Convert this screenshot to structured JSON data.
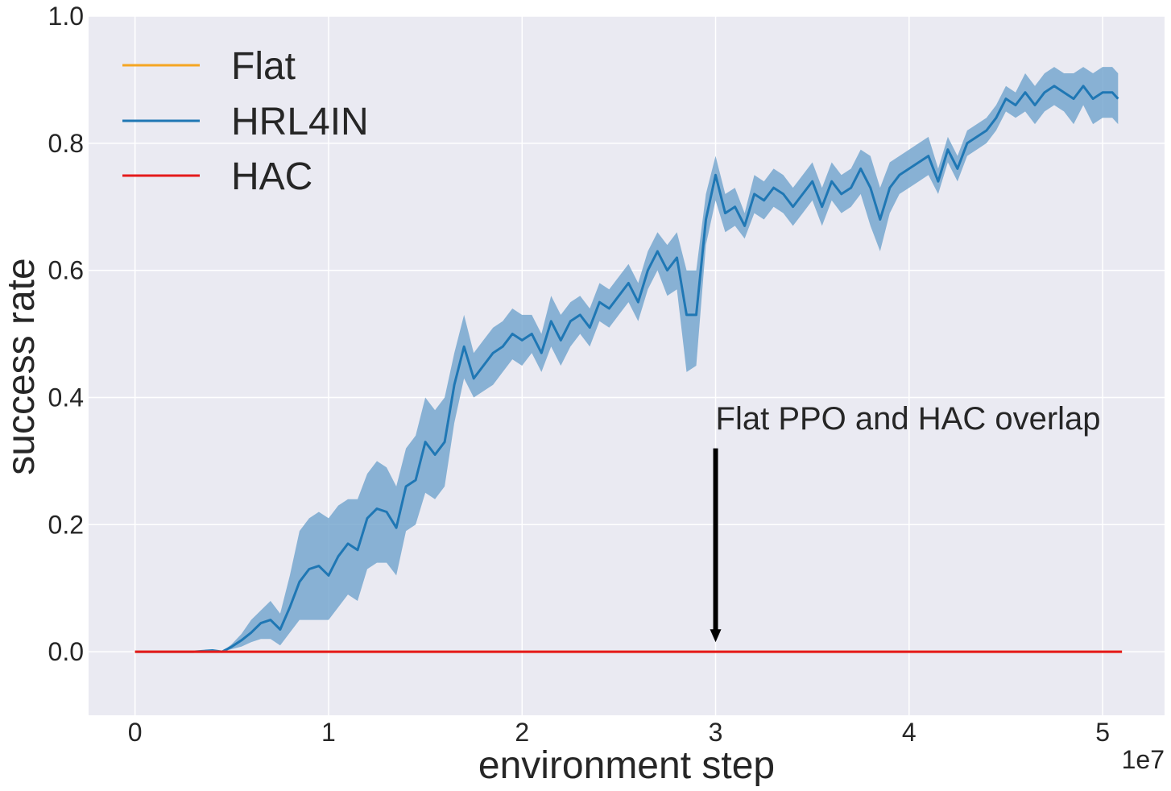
{
  "chart_data": {
    "type": "line",
    "title": "",
    "xlabel": "environment step",
    "ylabel": "success rate",
    "x_offset_label": "1e7",
    "xlim": [
      -0.24,
      5.32
    ],
    "ylim": [
      -0.1,
      1.0
    ],
    "x_ticks": [
      0,
      1,
      2,
      3,
      4,
      5
    ],
    "x_tick_labels": [
      "0",
      "1",
      "2",
      "3",
      "4",
      "5"
    ],
    "y_ticks": [
      0.0,
      0.2,
      0.4,
      0.6,
      0.8,
      1.0
    ],
    "y_tick_labels": [
      "0.0",
      "0.2",
      "0.4",
      "0.6",
      "0.8",
      "1.0"
    ],
    "grid": true,
    "legend_position": "top-left",
    "background_color": "#eaeaf2",
    "series": [
      {
        "name": "Flat",
        "color": "#f5a623",
        "x": [
          0.0,
          5.1
        ],
        "y": [
          0.0,
          0.0
        ]
      },
      {
        "name": "HRL4IN",
        "color": "#1f77b4",
        "band_color": "#6fa3cc",
        "x": [
          0.0,
          0.3,
          0.4,
          0.45,
          0.5,
          0.55,
          0.6,
          0.65,
          0.7,
          0.75,
          0.8,
          0.85,
          0.9,
          0.95,
          1.0,
          1.05,
          1.1,
          1.15,
          1.2,
          1.25,
          1.3,
          1.35,
          1.4,
          1.45,
          1.5,
          1.55,
          1.6,
          1.65,
          1.7,
          1.75,
          1.8,
          1.85,
          1.9,
          1.95,
          2.0,
          2.05,
          2.1,
          2.15,
          2.2,
          2.25,
          2.3,
          2.35,
          2.4,
          2.45,
          2.5,
          2.55,
          2.6,
          2.65,
          2.7,
          2.75,
          2.8,
          2.85,
          2.9,
          2.95,
          3.0,
          3.05,
          3.1,
          3.15,
          3.2,
          3.25,
          3.3,
          3.35,
          3.4,
          3.45,
          3.5,
          3.55,
          3.6,
          3.65,
          3.7,
          3.75,
          3.8,
          3.85,
          3.9,
          3.95,
          4.0,
          4.05,
          4.1,
          4.15,
          4.2,
          4.25,
          4.3,
          4.35,
          4.4,
          4.45,
          4.5,
          4.55,
          4.6,
          4.65,
          4.7,
          4.75,
          4.8,
          4.85,
          4.9,
          4.95,
          5.0,
          5.05,
          5.08
        ],
        "y": [
          0.0,
          0.0,
          0.002,
          0.0,
          0.008,
          0.018,
          0.03,
          0.045,
          0.05,
          0.035,
          0.07,
          0.11,
          0.13,
          0.135,
          0.12,
          0.15,
          0.17,
          0.16,
          0.21,
          0.225,
          0.22,
          0.195,
          0.26,
          0.27,
          0.33,
          0.31,
          0.33,
          0.42,
          0.48,
          0.43,
          0.45,
          0.47,
          0.48,
          0.5,
          0.49,
          0.5,
          0.47,
          0.52,
          0.49,
          0.52,
          0.53,
          0.51,
          0.55,
          0.54,
          0.56,
          0.58,
          0.55,
          0.6,
          0.63,
          0.6,
          0.62,
          0.53,
          0.53,
          0.68,
          0.75,
          0.69,
          0.7,
          0.67,
          0.72,
          0.71,
          0.73,
          0.72,
          0.7,
          0.72,
          0.74,
          0.7,
          0.74,
          0.72,
          0.73,
          0.76,
          0.73,
          0.68,
          0.73,
          0.75,
          0.76,
          0.77,
          0.78,
          0.74,
          0.79,
          0.76,
          0.8,
          0.81,
          0.82,
          0.84,
          0.87,
          0.86,
          0.88,
          0.86,
          0.88,
          0.89,
          0.88,
          0.87,
          0.89,
          0.87,
          0.88,
          0.88,
          0.87
        ],
        "y_lower": [
          0.0,
          0.0,
          0.001,
          0.0,
          0.004,
          0.008,
          0.015,
          0.02,
          0.02,
          0.01,
          0.03,
          0.05,
          0.05,
          0.05,
          0.05,
          0.07,
          0.09,
          0.08,
          0.13,
          0.14,
          0.14,
          0.12,
          0.19,
          0.2,
          0.25,
          0.24,
          0.26,
          0.36,
          0.43,
          0.4,
          0.41,
          0.42,
          0.44,
          0.46,
          0.45,
          0.47,
          0.44,
          0.48,
          0.45,
          0.48,
          0.5,
          0.48,
          0.52,
          0.51,
          0.53,
          0.55,
          0.52,
          0.57,
          0.6,
          0.56,
          0.57,
          0.44,
          0.45,
          0.64,
          0.71,
          0.66,
          0.67,
          0.65,
          0.69,
          0.68,
          0.7,
          0.69,
          0.67,
          0.69,
          0.71,
          0.67,
          0.71,
          0.69,
          0.7,
          0.72,
          0.67,
          0.63,
          0.69,
          0.72,
          0.73,
          0.74,
          0.75,
          0.72,
          0.77,
          0.74,
          0.78,
          0.79,
          0.8,
          0.82,
          0.85,
          0.84,
          0.85,
          0.83,
          0.85,
          0.86,
          0.85,
          0.83,
          0.86,
          0.83,
          0.84,
          0.84,
          0.83
        ],
        "y_upper": [
          0.0,
          0.0,
          0.003,
          0.0,
          0.012,
          0.028,
          0.05,
          0.065,
          0.08,
          0.06,
          0.12,
          0.19,
          0.21,
          0.22,
          0.21,
          0.23,
          0.24,
          0.24,
          0.28,
          0.3,
          0.29,
          0.26,
          0.32,
          0.34,
          0.4,
          0.38,
          0.4,
          0.47,
          0.53,
          0.47,
          0.49,
          0.51,
          0.52,
          0.54,
          0.53,
          0.53,
          0.5,
          0.56,
          0.53,
          0.55,
          0.56,
          0.54,
          0.58,
          0.57,
          0.59,
          0.61,
          0.58,
          0.63,
          0.66,
          0.64,
          0.66,
          0.6,
          0.6,
          0.72,
          0.78,
          0.72,
          0.73,
          0.69,
          0.75,
          0.74,
          0.76,
          0.75,
          0.73,
          0.75,
          0.77,
          0.73,
          0.77,
          0.75,
          0.76,
          0.79,
          0.78,
          0.73,
          0.77,
          0.78,
          0.79,
          0.8,
          0.81,
          0.76,
          0.81,
          0.78,
          0.82,
          0.83,
          0.84,
          0.86,
          0.89,
          0.88,
          0.91,
          0.89,
          0.91,
          0.92,
          0.91,
          0.91,
          0.92,
          0.91,
          0.92,
          0.92,
          0.91
        ]
      },
      {
        "name": "HAC",
        "color": "#e41a1c",
        "x": [
          0.0,
          5.1
        ],
        "y": [
          0.0,
          0.0
        ]
      }
    ],
    "annotations": [
      {
        "text": "Flat PPO and HAC overlap",
        "text_x": 3.0,
        "text_y": 0.35,
        "arrow_from": [
          3.0,
          0.32
        ],
        "arrow_to": [
          3.0,
          0.015
        ]
      }
    ]
  }
}
